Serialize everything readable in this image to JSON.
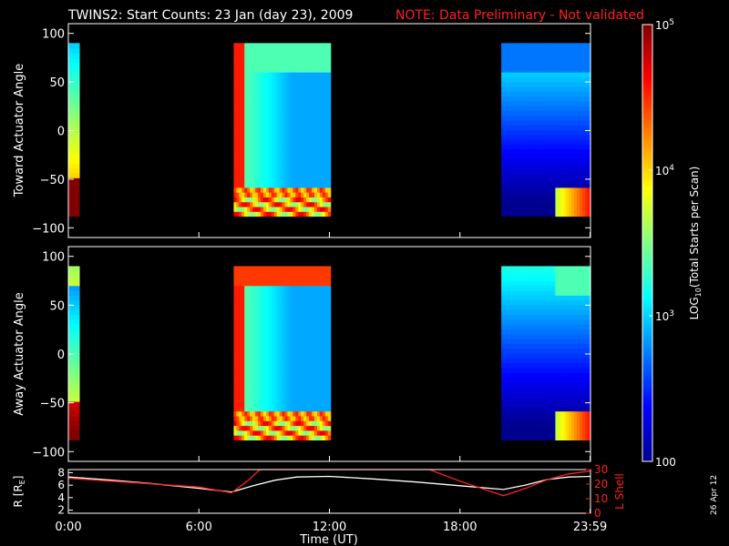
{
  "title": "TWINS2: Start Counts: 23 Jan (day  23), 2009",
  "note": "NOTE: Data Preliminary - Not validated",
  "datestamp": "26 Apr 12",
  "chart_data": [
    {
      "type": "heatmap",
      "ylabel": "Toward Actuator Angle",
      "ylim": [
        -110,
        110
      ],
      "yticks": [
        "100",
        "50",
        "0",
        "−50",
        "−100"
      ],
      "ytick_values": [
        100,
        50,
        0,
        -50,
        -100
      ],
      "data_yrange": [
        -88,
        90
      ],
      "xlim_hours": [
        0,
        24
      ],
      "coverage_hours": [
        [
          0.0,
          0.5
        ],
        [
          7.6,
          12.05
        ],
        [
          19.9,
          24.0
        ]
      ]
    },
    {
      "type": "heatmap",
      "ylabel": "Away Actuator Angle",
      "ylim": [
        -110,
        110
      ],
      "yticks": [
        "100",
        "50",
        "0",
        "−50",
        "−100"
      ],
      "ytick_values": [
        100,
        50,
        0,
        -50,
        -100
      ],
      "data_yrange": [
        -88,
        90
      ],
      "xlim_hours": [
        0,
        24
      ],
      "coverage_hours": [
        [
          0.0,
          0.5
        ],
        [
          7.6,
          12.05
        ],
        [
          19.9,
          24.0
        ]
      ]
    },
    {
      "type": "line",
      "ylabel_left": "R [R",
      "ylabel_left_sub": "E",
      "ylabel_left_close": "]",
      "ylabel_right": "L Shell",
      "yticks_left": [
        "8",
        "6",
        "4",
        "2"
      ],
      "ytick_values_left": [
        8,
        6,
        4,
        2
      ],
      "ylim_left": [
        1.5,
        8.5
      ],
      "yticks_right": [
        "30",
        "20",
        "10",
        "0"
      ],
      "ytick_values_right": [
        30,
        20,
        10,
        0
      ],
      "ylim_right": [
        0,
        30
      ],
      "series": [
        {
          "axis": "left",
          "color": "#ffffff",
          "x": [
            0,
            2,
            4,
            6,
            7.5,
            8.5,
            9.5,
            10.5,
            12,
            14,
            16,
            18,
            20,
            21,
            22,
            23,
            24
          ],
          "y": [
            7.3,
            6.8,
            6.2,
            5.5,
            4.9,
            5.9,
            6.8,
            7.3,
            7.4,
            7.0,
            6.5,
            5.9,
            5.3,
            6.0,
            6.9,
            7.3,
            7.4
          ]
        },
        {
          "axis": "right",
          "color": "#ff2020",
          "x": [
            0,
            2,
            4,
            6,
            7.5,
            8.3,
            8.8,
            16.6,
            18.0,
            20.0,
            21.0,
            22.0,
            23.0,
            24.0
          ],
          "y": [
            24,
            22,
            20,
            18,
            14,
            23,
            30,
            30,
            22,
            12,
            17,
            23,
            27,
            29
          ]
        }
      ],
      "xtick_labels": [
        "0:00",
        "6:00",
        "12:00",
        "18:00",
        "23:59"
      ],
      "xtick_hours": [
        0,
        6,
        12,
        18,
        23.983
      ],
      "xlabel": "Time (UT)"
    }
  ],
  "colorbar": {
    "label_prefix": "LOG",
    "label_sub": "10",
    "label_suffix": "(Total Starts per Scan)",
    "ticks": [
      {
        "base": "10",
        "exp": "5",
        "value_log": 5
      },
      {
        "base": "10",
        "exp": "4",
        "value_log": 4
      },
      {
        "base": "10",
        "exp": "3",
        "value_log": 3
      },
      {
        "base": "100",
        "exp": "",
        "value_log": 2
      }
    ],
    "range_log": [
      2,
      5
    ],
    "colors": [
      "#00008f",
      "#0000ff",
      "#0080ff",
      "#00ffff",
      "#80ff80",
      "#ffff00",
      "#ff8000",
      "#ff0000",
      "#800000"
    ]
  }
}
